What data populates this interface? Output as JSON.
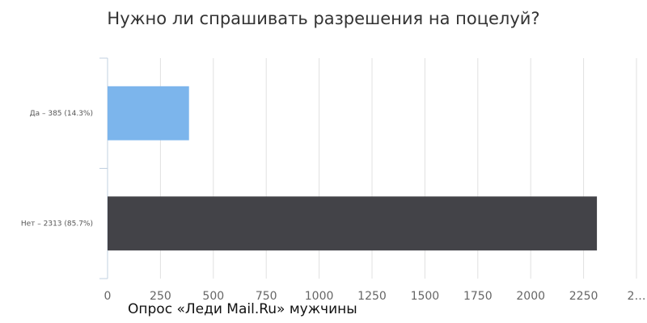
{
  "chart_data": {
    "type": "hbar",
    "title": "Нужно ли спрашивать разрешения на поцелуй?",
    "categories": [
      "Да – 385 (14.3%)",
      "Нет – 2313 (85.7%)"
    ],
    "series": [
      {
        "values": [
          385,
          2313
        ],
        "colors": [
          "#7cb5ec",
          "#434348"
        ]
      }
    ],
    "xlim": [
      0,
      2500
    ],
    "xticks": [
      0,
      250,
      500,
      750,
      1000,
      1250,
      1500,
      1750,
      2000,
      2250,
      {
        "value": 2500,
        "label": "2…"
      }
    ],
    "grid": true,
    "footnote": "Опрос «Леди Mail.Ru» мужчины"
  }
}
